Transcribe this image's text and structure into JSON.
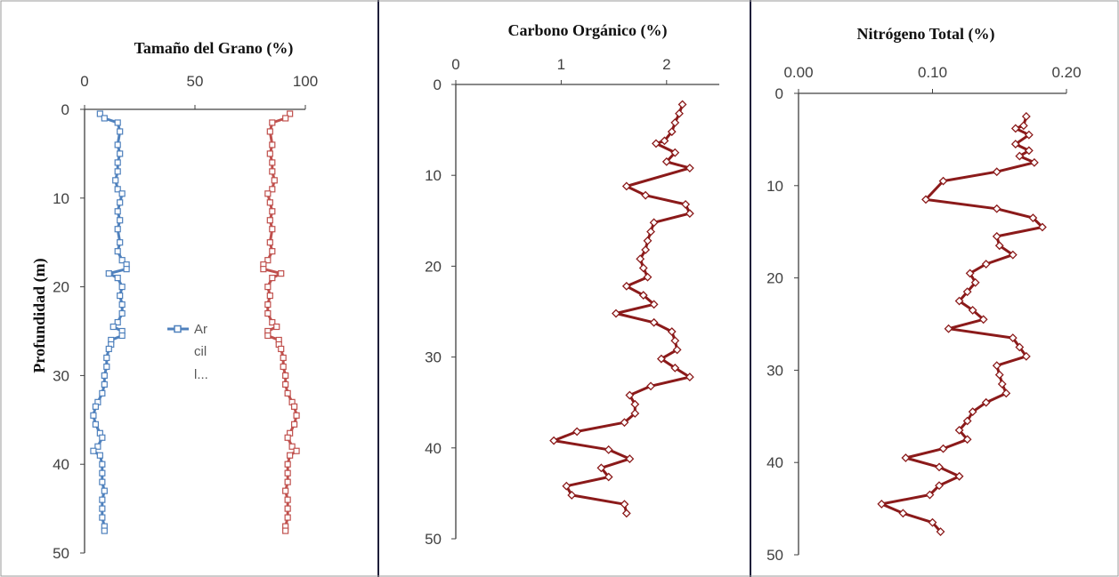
{
  "colors": {
    "clay": "#4f81bd",
    "sand": "#c0504d",
    "carbon": "#8b1a1a",
    "nitrogen": "#8b1a1a",
    "axis": "#404040",
    "divider": "#1f1f3a"
  },
  "legend": {
    "lines": [
      "Ar",
      "cil",
      "l..."
    ]
  },
  "chart_data": [
    {
      "type": "line",
      "title": "Tamaño del  Grano (%)",
      "ylabel": "Profundidad (m)",
      "xlim": [
        0,
        100
      ],
      "ylim": [
        0,
        50
      ],
      "xticks": [
        "0",
        "50",
        "100"
      ],
      "yticks": [
        "0",
        "10",
        "20",
        "30",
        "40",
        "50"
      ],
      "y_inverted": true,
      "series": [
        {
          "name": "Ar cil l...",
          "color": "#4f81bd",
          "points": [
            [
              7,
              0.5
            ],
            [
              9,
              1
            ],
            [
              15,
              1.5
            ],
            [
              16,
              2.5
            ],
            [
              15,
              4
            ],
            [
              16,
              5
            ],
            [
              15,
              6
            ],
            [
              15,
              7
            ],
            [
              14,
              8
            ],
            [
              15,
              9
            ],
            [
              17,
              9.5
            ],
            [
              16,
              10.5
            ],
            [
              15,
              11.5
            ],
            [
              16,
              12.5
            ],
            [
              15,
              13.5
            ],
            [
              16,
              15
            ],
            [
              15,
              16
            ],
            [
              17,
              17
            ],
            [
              19,
              17.5
            ],
            [
              19,
              18
            ],
            [
              11,
              18.5
            ],
            [
              15,
              19
            ],
            [
              17,
              20
            ],
            [
              16,
              21
            ],
            [
              17,
              22
            ],
            [
              17,
              23
            ],
            [
              15,
              24
            ],
            [
              13,
              24.5
            ],
            [
              17,
              25
            ],
            [
              17,
              25.5
            ],
            [
              12,
              26
            ],
            [
              12,
              26.5
            ],
            [
              11,
              27
            ],
            [
              10,
              28
            ],
            [
              10,
              29
            ],
            [
              9,
              30
            ],
            [
              9,
              31
            ],
            [
              8,
              32
            ],
            [
              6,
              33
            ],
            [
              5,
              33.5
            ],
            [
              4,
              34.5
            ],
            [
              5,
              35.5
            ],
            [
              7,
              36.5
            ],
            [
              8,
              37
            ],
            [
              6,
              38
            ],
            [
              4,
              38.5
            ],
            [
              7,
              39
            ],
            [
              8,
              40
            ],
            [
              8,
              41
            ],
            [
              8,
              42
            ],
            [
              9,
              43
            ],
            [
              8,
              44
            ],
            [
              8,
              45
            ],
            [
              8,
              46
            ],
            [
              9,
              47
            ],
            [
              9,
              47.5
            ]
          ]
        },
        {
          "color": "#c0504d",
          "points": [
            [
              93,
              0.5
            ],
            [
              91,
              1
            ],
            [
              85,
              1.5
            ],
            [
              84,
              2.5
            ],
            [
              85,
              4
            ],
            [
              84,
              5
            ],
            [
              85,
              6
            ],
            [
              85,
              7
            ],
            [
              86,
              8
            ],
            [
              85,
              9
            ],
            [
              83,
              9.5
            ],
            [
              84,
              10.5
            ],
            [
              85,
              11.5
            ],
            [
              84,
              12.5
            ],
            [
              85,
              13.5
            ],
            [
              84,
              15
            ],
            [
              85,
              16
            ],
            [
              83,
              17
            ],
            [
              81,
              17.5
            ],
            [
              81,
              18
            ],
            [
              89,
              18.5
            ],
            [
              85,
              19
            ],
            [
              83,
              20
            ],
            [
              84,
              21
            ],
            [
              83,
              22
            ],
            [
              83,
              23
            ],
            [
              85,
              24
            ],
            [
              87,
              24.5
            ],
            [
              83,
              25
            ],
            [
              83,
              25.5
            ],
            [
              88,
              26
            ],
            [
              88,
              26.5
            ],
            [
              89,
              27
            ],
            [
              90,
              28
            ],
            [
              90,
              29
            ],
            [
              91,
              30
            ],
            [
              91,
              31
            ],
            [
              92,
              32
            ],
            [
              94,
              33
            ],
            [
              95,
              33.5
            ],
            [
              96,
              34.5
            ],
            [
              95,
              35.5
            ],
            [
              93,
              36.5
            ],
            [
              92,
              37
            ],
            [
              94,
              38
            ],
            [
              96,
              38.5
            ],
            [
              93,
              39
            ],
            [
              92,
              40
            ],
            [
              92,
              41
            ],
            [
              92,
              42
            ],
            [
              91,
              43
            ],
            [
              92,
              44
            ],
            [
              92,
              45
            ],
            [
              92,
              46
            ],
            [
              91,
              47
            ],
            [
              91,
              47.5
            ]
          ]
        }
      ]
    },
    {
      "type": "line",
      "title": "Carbono Orgánico  (%)",
      "xlim": [
        0,
        2.5
      ],
      "ylim": [
        0,
        50
      ],
      "xticks": [
        "0",
        "1",
        "2"
      ],
      "yticks": [
        "0",
        "10",
        "20",
        "30",
        "40",
        "50"
      ],
      "y_inverted": true,
      "series": [
        {
          "color": "#8b1a1a",
          "points": [
            [
              2.15,
              2.2
            ],
            [
              2.12,
              3.2
            ],
            [
              2.08,
              4.2
            ],
            [
              2.05,
              5.2
            ],
            [
              1.98,
              6.2
            ],
            [
              1.9,
              6.5
            ],
            [
              2.08,
              7.5
            ],
            [
              2.0,
              8.5
            ],
            [
              2.22,
              9.2
            ],
            [
              1.62,
              11.2
            ],
            [
              1.8,
              12.2
            ],
            [
              2.18,
              13.2
            ],
            [
              2.22,
              14.2
            ],
            [
              1.88,
              15.2
            ],
            [
              1.85,
              16.2
            ],
            [
              1.82,
              17.2
            ],
            [
              1.8,
              18.2
            ],
            [
              1.75,
              19.2
            ],
            [
              1.78,
              20.2
            ],
            [
              1.82,
              21.2
            ],
            [
              1.62,
              22.2
            ],
            [
              1.78,
              23.2
            ],
            [
              1.88,
              24.2
            ],
            [
              1.52,
              25.2
            ],
            [
              1.88,
              26.2
            ],
            [
              2.05,
              27.2
            ],
            [
              2.08,
              28.2
            ],
            [
              2.1,
              29.2
            ],
            [
              1.95,
              30.2
            ],
            [
              2.08,
              31.2
            ],
            [
              2.22,
              32.2
            ],
            [
              1.85,
              33.2
            ],
            [
              1.65,
              34.2
            ],
            [
              1.7,
              35.2
            ],
            [
              1.7,
              36.2
            ],
            [
              1.6,
              37.2
            ],
            [
              1.15,
              38.2
            ],
            [
              0.93,
              39.2
            ],
            [
              1.45,
              40.2
            ],
            [
              1.65,
              41.2
            ],
            [
              1.38,
              42.2
            ],
            [
              1.45,
              43.2
            ],
            [
              1.05,
              44.2
            ],
            [
              1.1,
              45.2
            ],
            [
              1.6,
              46.2
            ],
            [
              1.62,
              47.2
            ]
          ]
        }
      ]
    },
    {
      "type": "line",
      "title": "Nitrógeno Total (%)",
      "xlim": [
        0,
        0.2
      ],
      "ylim": [
        0,
        50
      ],
      "xticks": [
        "0.00",
        "0.10",
        "0.20"
      ],
      "yticks": [
        "0",
        "10",
        "20",
        "30",
        "40",
        "50"
      ],
      "y_inverted": true,
      "series": [
        {
          "color": "#8b1a1a",
          "points": [
            [
              0.17,
              2.5
            ],
            [
              0.168,
              3.5
            ],
            [
              0.162,
              3.8
            ],
            [
              0.172,
              4.5
            ],
            [
              0.162,
              5.5
            ],
            [
              0.172,
              6.2
            ],
            [
              0.165,
              6.8
            ],
            [
              0.176,
              7.5
            ],
            [
              0.148,
              8.5
            ],
            [
              0.108,
              9.5
            ],
            [
              0.095,
              11.5
            ],
            [
              0.148,
              12.5
            ],
            [
              0.175,
              13.5
            ],
            [
              0.182,
              14.5
            ],
            [
              0.148,
              15.5
            ],
            [
              0.15,
              16.5
            ],
            [
              0.16,
              17.5
            ],
            [
              0.14,
              18.5
            ],
            [
              0.128,
              19.5
            ],
            [
              0.132,
              20.5
            ],
            [
              0.126,
              21.5
            ],
            [
              0.12,
              22.5
            ],
            [
              0.13,
              23.5
            ],
            [
              0.138,
              24.5
            ],
            [
              0.112,
              25.5
            ],
            [
              0.16,
              26.5
            ],
            [
              0.165,
              27.5
            ],
            [
              0.17,
              28.5
            ],
            [
              0.148,
              29.5
            ],
            [
              0.15,
              30.5
            ],
            [
              0.152,
              31.5
            ],
            [
              0.155,
              32.5
            ],
            [
              0.14,
              33.5
            ],
            [
              0.13,
              34.5
            ],
            [
              0.126,
              35.5
            ],
            [
              0.12,
              36.5
            ],
            [
              0.126,
              37.5
            ],
            [
              0.108,
              38.5
            ],
            [
              0.08,
              39.5
            ],
            [
              0.105,
              40.5
            ],
            [
              0.12,
              41.5
            ],
            [
              0.105,
              42.5
            ],
            [
              0.098,
              43.5
            ],
            [
              0.062,
              44.5
            ],
            [
              0.078,
              45.5
            ],
            [
              0.1,
              46.5
            ],
            [
              0.106,
              47.5
            ]
          ]
        }
      ]
    }
  ]
}
